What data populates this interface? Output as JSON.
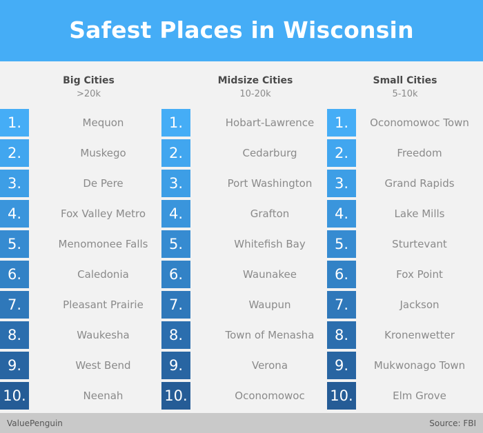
{
  "title": "Safest Places in Wisconsin",
  "colors": {
    "header": "#45adf6",
    "rank_gradient": [
      "#45adf6",
      "#41a6ef",
      "#3d9ee6",
      "#3a95dc",
      "#368bd1",
      "#3282c6",
      "#2f78ba",
      "#2b6eae",
      "#2865a2",
      "#255c96"
    ]
  },
  "columns": [
    {
      "title": "Big Cities",
      "subtitle": ">20k",
      "rows": [
        {
          "rank": "1.",
          "name": "Mequon"
        },
        {
          "rank": "2.",
          "name": "Muskego"
        },
        {
          "rank": "3.",
          "name": "De Pere"
        },
        {
          "rank": "4.",
          "name": "Fox Valley Metro"
        },
        {
          "rank": "5.",
          "name": "Menomonee Falls"
        },
        {
          "rank": "6.",
          "name": "Caledonia"
        },
        {
          "rank": "7.",
          "name": "Pleasant Prairie"
        },
        {
          "rank": "8.",
          "name": "Waukesha"
        },
        {
          "rank": "9.",
          "name": "West Bend"
        },
        {
          "rank": "10.",
          "name": "Neenah"
        }
      ]
    },
    {
      "title": "Midsize Cities",
      "subtitle": "10-20k",
      "rows": [
        {
          "rank": "1.",
          "name": "Hobart-Lawrence"
        },
        {
          "rank": "2.",
          "name": "Cedarburg"
        },
        {
          "rank": "3.",
          "name": "Port Washington"
        },
        {
          "rank": "4.",
          "name": "Grafton"
        },
        {
          "rank": "5.",
          "name": "Whitefish Bay"
        },
        {
          "rank": "6.",
          "name": "Waunakee"
        },
        {
          "rank": "7.",
          "name": "Waupun"
        },
        {
          "rank": "8.",
          "name": "Town of Menasha"
        },
        {
          "rank": "9.",
          "name": "Verona"
        },
        {
          "rank": "10.",
          "name": "Oconomowoc"
        }
      ]
    },
    {
      "title": "Small Cities",
      "subtitle": "5-10k",
      "rows": [
        {
          "rank": "1.",
          "name": "Oconomowoc Town"
        },
        {
          "rank": "2.",
          "name": "Freedom"
        },
        {
          "rank": "3.",
          "name": "Grand Rapids"
        },
        {
          "rank": "4.",
          "name": "Lake Mills"
        },
        {
          "rank": "5.",
          "name": "Sturtevant"
        },
        {
          "rank": "6.",
          "name": "Fox Point"
        },
        {
          "rank": "7.",
          "name": "Jackson"
        },
        {
          "rank": "8.",
          "name": "Kronenwetter"
        },
        {
          "rank": "9.",
          "name": "Mukwonago Town"
        },
        {
          "rank": "10.",
          "name": "Elm Grove"
        }
      ]
    }
  ],
  "footer": {
    "left": "ValuePenguin",
    "right": "Source: FBI"
  }
}
